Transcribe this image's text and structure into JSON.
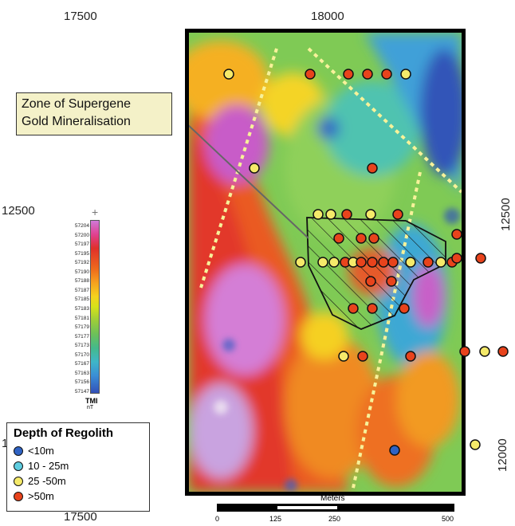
{
  "coords": {
    "top_left": "17500",
    "top_center": "18000",
    "bottom_left": "17500",
    "left_mid": "12500",
    "left_bottom": "1",
    "right_mid": "12500",
    "right_bottom": "12000"
  },
  "callout": {
    "line1": "Zone of Supergene",
    "line2": "Gold Mineralisation"
  },
  "colorbar": {
    "ticks": [
      "57204",
      "57200",
      "57197",
      "57195",
      "57192",
      "57190",
      "57188",
      "57187",
      "57185",
      "57183",
      "57181",
      "57179",
      "57177",
      "57173",
      "57170",
      "57167",
      "57163",
      "57156",
      "57147"
    ],
    "unit_label": "TMI",
    "unit": "nT"
  },
  "legend": {
    "title": "Depth of Regolith",
    "items": [
      {
        "label": "<10m",
        "color": "#2f63c4"
      },
      {
        "label": "10 - 25m",
        "color": "#5fcde0"
      },
      {
        "label": "25 -50m",
        "color": "#f5ea6a"
      },
      {
        "label": ">50m",
        "color": "#e8431c"
      }
    ]
  },
  "scale": {
    "title": "Meters",
    "ticks": [
      "0",
      "125",
      "250",
      "500"
    ]
  },
  "colors": {
    "deep": "#2f63c4",
    "shallow": "#5fcde0",
    "mid": "#f5ea6a",
    "over50": "#e8431c",
    "trend_line": "#f7f29a"
  }
}
